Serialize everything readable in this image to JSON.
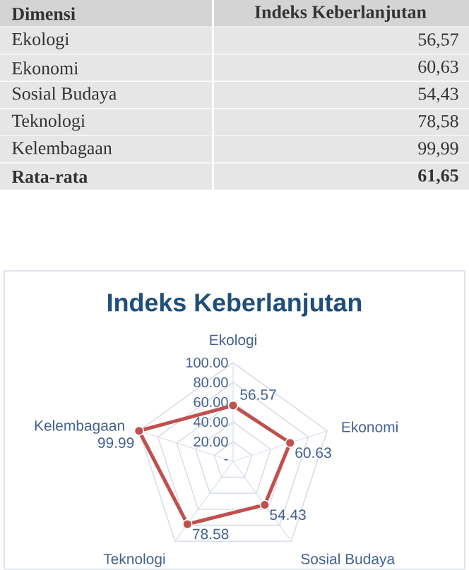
{
  "chart_data": [
    {
      "type": "other",
      "annotations": [
        "Dimensi",
        "Indeks Keberlanjutan",
        "Ekologi",
        "56,57",
        "Ekonomi",
        "60,63",
        "Sosial Budaya",
        "54,43",
        "Teknologi",
        "78,58",
        "Kelembagaan",
        "99,99",
        "Rata-rata",
        "61,65"
      ]
    },
    {
      "type": "radar",
      "title": "Indeks Keberlanjutan",
      "categories": [
        "Ekologi",
        "Ekonomi",
        "Sosial Budaya",
        "Teknologi",
        "Kelembagaan"
      ],
      "series": [
        {
          "color": "#c0504d",
          "values": [
            56.57,
            60.63,
            54.43,
            78.58,
            99.99
          ],
          "value_labels": [
            "56.57",
            "60.63",
            "54.43",
            "78.58",
            "99.99"
          ]
        }
      ],
      "ylim": [
        0,
        100
      ],
      "yticks": [
        {
          "value": 0,
          "label": "-"
        },
        {
          "value": 20,
          "label": "20.00"
        },
        {
          "value": 40,
          "label": "40.00"
        },
        {
          "value": 60,
          "label": "60.00"
        },
        {
          "value": 80,
          "label": "80.00"
        },
        {
          "value": 100,
          "label": "100.00"
        }
      ],
      "grid": true,
      "marker": "circle"
    }
  ]
}
